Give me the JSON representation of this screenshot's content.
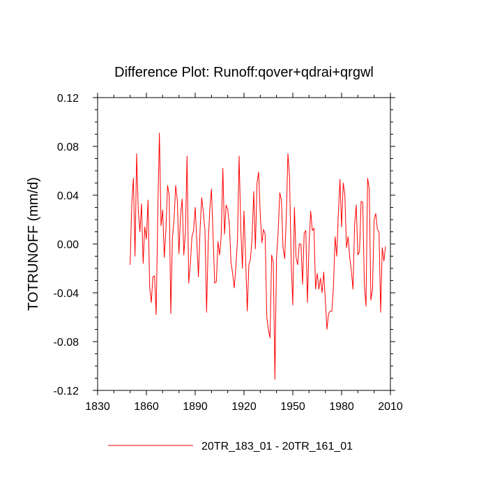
{
  "chart_data": {
    "type": "line",
    "title": "Difference Plot: Runoff:qover+qdrai+qrgwl",
    "xlabel": "",
    "ylabel": "TOTRUNOFF  (mm/d)",
    "xlim": [
      1830,
      2010
    ],
    "ylim": [
      -0.12,
      0.12
    ],
    "x_ticks": [
      1830,
      1860,
      1890,
      1920,
      1950,
      1980,
      2010
    ],
    "y_ticks": [
      -0.12,
      -0.08,
      -0.04,
      0.0,
      0.04,
      0.08,
      0.12
    ],
    "x_tick_labels": [
      "1830",
      "1860",
      "1890",
      "1920",
      "1950",
      "1980",
      "2010"
    ],
    "y_tick_labels": [
      "-0.12",
      "-0.08",
      "-0.04",
      "0.00",
      "0.04",
      "0.08",
      "0.12"
    ],
    "legend_position": "bottom-center",
    "series": [
      {
        "name": "20TR_183_01 - 20TR_161_01",
        "color": "#ff0000",
        "x_start": 1850,
        "x_step": 1,
        "values": [
          -0.017,
          0.033,
          0.054,
          -0.01,
          0.074,
          0.028,
          0.01,
          0.033,
          -0.016,
          0.014,
          0.004,
          0.036,
          -0.035,
          -0.048,
          -0.027,
          -0.026,
          -0.058,
          0.025,
          0.091,
          0.015,
          0.028,
          -0.011,
          0.012,
          0.048,
          0.04,
          -0.057,
          0.005,
          0.02,
          0.048,
          0.036,
          -0.008,
          0.024,
          0.037,
          -0.009,
          0.01,
          0.072,
          -0.032,
          -0.017,
          0.006,
          0.011,
          0.03,
          0.002,
          -0.027,
          0.012,
          0.038,
          0.026,
          0.011,
          -0.056,
          0.001,
          0.029,
          0.045,
          0.006,
          -0.032,
          -0.031,
          0.002,
          -0.009,
          0.007,
          0.062,
          0.008,
          0.032,
          0.028,
          0.016,
          -0.015,
          -0.024,
          -0.036,
          -0.019,
          0.004,
          0.072,
          0.014,
          -0.02,
          0.027,
          -0.012,
          -0.055,
          -0.017,
          -0.012,
          0.006,
          0.043,
          -0.004,
          0.05,
          0.059,
          0.024,
          0.001,
          0.012,
          0.008,
          -0.06,
          -0.07,
          -0.077,
          -0.009,
          -0.015,
          -0.111,
          -0.011,
          0.01,
          0.042,
          0.036,
          -0.003,
          -0.012,
          0.022,
          0.074,
          0.055,
          -0.015,
          -0.05,
          0.03,
          -0.011,
          -0.017,
          0.0,
          0.0,
          -0.033,
          0.009,
          0.011,
          -0.048,
          0.0,
          0.027,
          0.011,
          0.013,
          -0.037,
          -0.024,
          -0.037,
          -0.028,
          -0.04,
          -0.023,
          -0.046,
          -0.07,
          -0.057,
          -0.055,
          -0.055,
          -0.035,
          0.006,
          -0.01,
          0.025,
          0.053,
          0.014,
          0.05,
          0.04,
          -0.003,
          0.006,
          -0.011,
          -0.022,
          -0.037,
          0.016,
          0.032,
          -0.009,
          -0.006,
          0.035,
          0.034,
          -0.034,
          -0.051,
          0.054,
          0.045,
          -0.046,
          -0.037,
          0.02,
          0.025,
          0.012,
          0.01,
          -0.056,
          -0.003,
          -0.014,
          -0.002
        ]
      }
    ]
  }
}
